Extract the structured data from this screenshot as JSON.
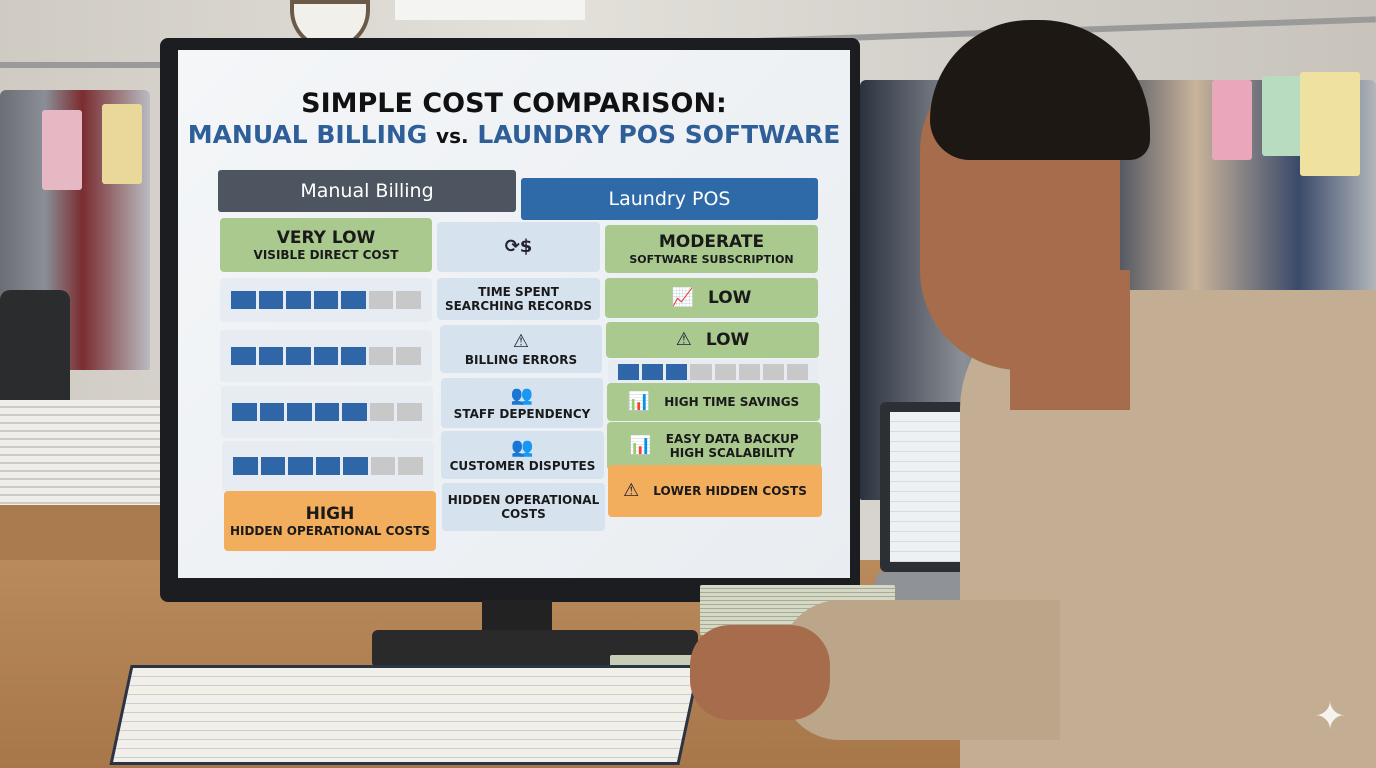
{
  "screen": {
    "title_line1": "SIMPLE COST COMPARISON:",
    "title_manual": "MANUAL BILLING",
    "title_vs": "vs.",
    "title_pos": "LAUNDRY POS SOFTWARE",
    "header_manual": "Manual Billing",
    "header_pos": "Laundry POS",
    "rows": [
      {
        "manual_value": "VERY LOW",
        "manual_note": "VISIBLE DIRECT COST",
        "factor_icon": "dollar-cycle-icon",
        "factor": "",
        "pos_value": "MODERATE",
        "pos_note": "SOFTWARE SUBSCRIPTION"
      },
      {
        "manual_bar_fraction": 0.71,
        "factor": "TIME SPENT SEARCHING RECORDS",
        "pos_icon": "chart-search-icon",
        "pos_value": "LOW"
      },
      {
        "manual_bar_fraction": 0.71,
        "factor_icon": "warning-icon",
        "factor": "BILLING ERRORS",
        "pos_icon": "warning-icon",
        "pos_value": "LOW",
        "pos_bar_fraction": 0.375
      },
      {
        "manual_bar_fraction": 0.71,
        "factor_icon": "people-icon",
        "factor": "STAFF DEPENDENCY",
        "pos_icon": "growth-chart-icon",
        "pos_value": "HIGH TIME SAVINGS"
      },
      {
        "manual_bar_fraction": 0.71,
        "factor_icon": "people-icon",
        "factor": "CUSTOMER DISPUTES",
        "pos_icon": "growth-chart-icon",
        "pos_value": "EASY DATA BACKUP",
        "pos_note": "HIGH SCALABILITY"
      },
      {
        "manual_value": "HIGH",
        "manual_note": "HIDDEN OPERATIONAL COSTS",
        "factor": "HIDDEN OPERATIONAL COSTS",
        "pos_icon": "warning-icon",
        "pos_value": "LOWER HIDDEN COSTS"
      }
    ]
  },
  "colors": {
    "green": "#a9c98f",
    "blue": "#2e66a8",
    "orange": "#f2ae5c",
    "dark_header": "#4d5560"
  }
}
